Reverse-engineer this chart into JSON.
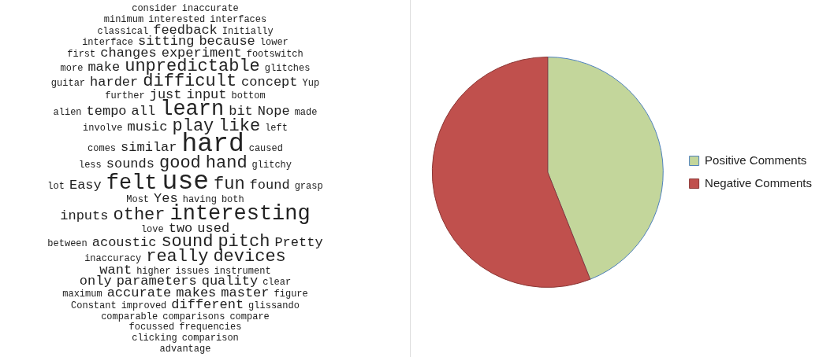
{
  "chart_data": [
    {
      "type": "other",
      "annotations": [
        "consider",
        "inaccurate",
        "minimum",
        "interested",
        "interfaces",
        "classical",
        "feedback",
        "Initially",
        "interface",
        "sitting",
        "because",
        "lower",
        "first",
        "changes",
        "experiment",
        "footswitch",
        "more",
        "make",
        "unpredictable",
        "glitches",
        "guitar",
        "harder",
        "difficult",
        "concept",
        "Yup",
        "further",
        "just",
        "input",
        "bottom",
        "alien",
        "tempo",
        "all",
        "learn",
        "bit",
        "Nope",
        "made",
        "involve",
        "music",
        "play",
        "like",
        "left",
        "comes",
        "similar",
        "hard",
        "caused",
        "less",
        "sounds",
        "good",
        "hand",
        "glitchy",
        "lot",
        "Easy",
        "felt",
        "use",
        "fun",
        "found",
        "grasp",
        "Most",
        "Yes",
        "having",
        "both",
        "inputs",
        "other",
        "interesting",
        "love",
        "two",
        "used",
        "between",
        "acoustic",
        "sound",
        "pitch",
        "Pretty",
        "inaccuracy",
        "really",
        "devices",
        "want",
        "higher",
        "issues",
        "instrument",
        "only",
        "parameters",
        "quality",
        "clear",
        "maximum",
        "accurate",
        "makes",
        "master",
        "figure",
        "Constant",
        "improved",
        "different",
        "glissando",
        "comparable",
        "comparisons",
        "compare",
        "focussed",
        "frequencies",
        "clicking",
        "comparison",
        "advantage"
      ]
    },
    {
      "type": "pie",
      "categories": [
        "Positive Comments",
        "Negative Comments"
      ],
      "values": [
        44,
        56
      ],
      "colors": [
        "#c3d69b",
        "#c0504d"
      ],
      "legend": "right"
    }
  ]
}
